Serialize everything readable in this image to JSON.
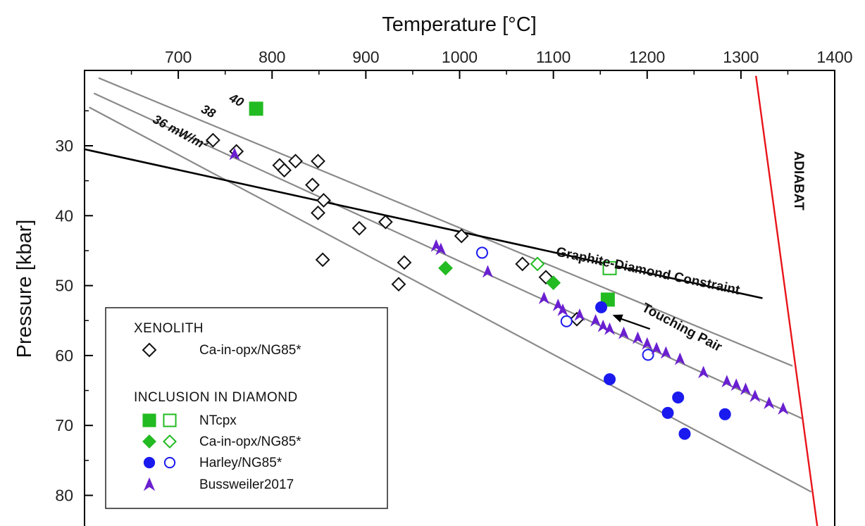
{
  "chart_data": {
    "type": "scatter",
    "xlabel": "Temperature [°C]",
    "ylabel": "Pressure [kbar]",
    "xlim": [
      600,
      1400
    ],
    "ylim": [
      85,
      20
    ],
    "x_ticks": [
      700,
      800,
      900,
      1000,
      1100,
      1200,
      1300,
      1400
    ],
    "y_ticks": [
      30,
      40,
      50,
      60,
      70,
      80
    ],
    "grid": false,
    "legend_position": "bottom-left",
    "colors": {
      "xenolith": "#111111",
      "diamond_green": "#22bb22",
      "harley_blue": "#1a1aee",
      "bussweiler_purple": "#6a1fd0",
      "geotherm": "#8a8a8a",
      "graphite_diamond": "#000000",
      "adiabat": "#e8141a"
    },
    "lines": [
      {
        "id": "geotherm-40",
        "label": "40",
        "points": [
          [
            615,
            20.3
          ],
          [
            1355,
            61.5
          ]
        ]
      },
      {
        "id": "geotherm-38",
        "label": "38",
        "points": [
          [
            610,
            22.5
          ],
          [
            1365,
            69
          ]
        ]
      },
      {
        "id": "geotherm-36",
        "label": "36 mW/m²",
        "points": [
          [
            605,
            24.5
          ],
          [
            1375,
            79.5
          ]
        ]
      },
      {
        "id": "graphite-diamond",
        "label": "Graphite-Diamond Constraint",
        "points": [
          [
            600,
            30.5
          ],
          [
            1323,
            51.8
          ]
        ]
      },
      {
        "id": "adiabat",
        "label": "ADIABAT",
        "points": [
          [
            1316,
            20
          ],
          [
            1382,
            85
          ]
        ]
      }
    ],
    "series": [
      {
        "name": "Ca-in-opx/NG85*",
        "group": "Xenolith",
        "marker": "diamond-open",
        "points": [
          [
            737,
            29.2
          ],
          [
            762,
            30.8
          ],
          [
            808,
            32.8
          ],
          [
            813,
            33.5
          ],
          [
            825,
            32.2
          ],
          [
            849,
            32.2
          ],
          [
            843,
            35.6
          ],
          [
            855,
            37.8
          ],
          [
            849,
            39.6
          ],
          [
            854,
            46.3
          ],
          [
            893,
            41.8
          ],
          [
            921,
            40.9
          ],
          [
            941,
            46.7
          ],
          [
            935,
            49.8
          ],
          [
            1002,
            42.9
          ],
          [
            1067,
            46.9
          ],
          [
            1092,
            48.8
          ],
          [
            1125,
            54.8
          ]
        ]
      },
      {
        "name": "NTcpx",
        "group": "Inclusion in Diamond",
        "marker": "square-filled",
        "points": [
          [
            783,
            24.7
          ],
          [
            1158,
            52.0
          ]
        ]
      },
      {
        "name": "NTcpx",
        "group": "Inclusion in Diamond",
        "marker": "square-open",
        "points": [
          [
            1160,
            47.5
          ]
        ]
      },
      {
        "name": "Ca-in-opx/NG85*",
        "group": "Inclusion in Diamond",
        "marker": "diamond-filled",
        "points": [
          [
            985,
            47.5
          ],
          [
            1100,
            49.6
          ]
        ]
      },
      {
        "name": "Ca-in-opx/NG85*",
        "group": "Inclusion in Diamond",
        "marker": "diamond-open",
        "points": [
          [
            1083,
            46.9
          ]
        ]
      },
      {
        "name": "Harley/NG85*",
        "group": "Inclusion in Diamond",
        "marker": "circle-filled",
        "points": [
          [
            1151,
            53.1
          ],
          [
            1160,
            63.4
          ],
          [
            1233,
            66.0
          ],
          [
            1222,
            68.2
          ],
          [
            1240,
            71.2
          ],
          [
            1283,
            68.4
          ]
        ]
      },
      {
        "name": "Harley/NG85*",
        "group": "Inclusion in Diamond",
        "marker": "circle-open",
        "points": [
          [
            1024,
            45.3
          ],
          [
            1114,
            55.1
          ],
          [
            1201,
            59.9
          ]
        ]
      },
      {
        "name": "Bussweiler2017",
        "group": "Inclusion in Diamond",
        "marker": "triangle-filled",
        "points": [
          [
            760,
            31.2
          ],
          [
            975,
            44.3
          ],
          [
            980,
            44.8
          ],
          [
            1030,
            48.0
          ],
          [
            1090,
            51.8
          ],
          [
            1105,
            52.8
          ],
          [
            1110,
            53.5
          ],
          [
            1128,
            54.2
          ],
          [
            1145,
            55.0
          ],
          [
            1153,
            55.8
          ],
          [
            1160,
            56.2
          ],
          [
            1175,
            56.8
          ],
          [
            1190,
            57.5
          ],
          [
            1200,
            58.3
          ],
          [
            1210,
            59.0
          ],
          [
            1220,
            59.6
          ],
          [
            1235,
            60.5
          ],
          [
            1260,
            62.4
          ],
          [
            1285,
            63.7
          ],
          [
            1295,
            64.2
          ],
          [
            1305,
            64.8
          ],
          [
            1315,
            65.8
          ],
          [
            1330,
            66.8
          ],
          [
            1345,
            67.6
          ]
        ]
      }
    ],
    "annotations": [
      {
        "text": "40",
        "x": 760,
        "y": 24.0,
        "angle": 28
      },
      {
        "text": "38",
        "x": 730,
        "y": 25.6,
        "angle": 28
      },
      {
        "text": "36 mW/m²",
        "x": 700,
        "y": 28.6,
        "angle": 28
      },
      {
        "text": "Graphite-Diamond Constraint",
        "x": 1200,
        "y": 48.5,
        "angle": 12
      },
      {
        "text": "Touching Pair",
        "x": 1235,
        "y": 56.5,
        "angle": 28
      },
      {
        "text": "ADIABAT",
        "x": 1357,
        "y": 35.0,
        "angle": 90
      }
    ],
    "arrow": {
      "from": [
        1203,
        56.2
      ],
      "to": [
        1163,
        54.2
      ]
    }
  },
  "labels": {
    "x_title": "Temperature [°C]",
    "y_title": "Pressure [kbar]"
  },
  "legend": {
    "group1_title": "XENOLITH",
    "group1_items": [
      {
        "marker": "diamond-open",
        "label": "Ca-in-opx/NG85*"
      }
    ],
    "group2_title": "INCLUSION IN DIAMOND",
    "group2_items": [
      {
        "marker": "square",
        "label": "NTcpx"
      },
      {
        "marker": "diamond",
        "label": "Ca-in-opx/NG85*"
      },
      {
        "marker": "circle",
        "label": "Harley/NG85*"
      },
      {
        "marker": "triangle",
        "label": "Bussweiler2017"
      }
    ]
  }
}
